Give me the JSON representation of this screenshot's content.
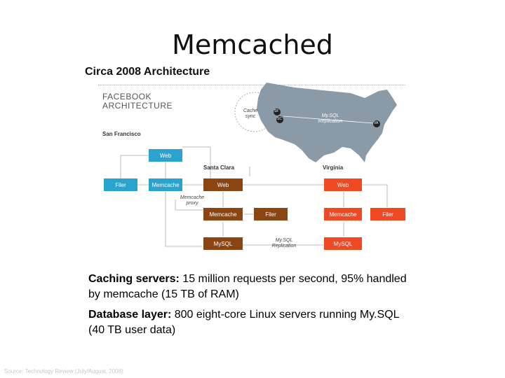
{
  "title": "Memcached",
  "subtitle": "Circa 2008 Architecture",
  "diagram": {
    "logo_line1": "FACEBOOK",
    "logo_line2": "ARCHITECTURE",
    "sites": {
      "sf": "San Francisco",
      "sc": "Santa Clara",
      "va": "Virginia"
    },
    "map": {
      "cache_sync": "Cache\nsync",
      "mysql_replication": "My.SQL\nReplication",
      "badge_sf": "SF",
      "badge_sc": "SC",
      "badge_va": "VA"
    },
    "boxes": {
      "sf_web": "Web",
      "sf_filer": "Filer",
      "sf_memcache": "Memcache",
      "sc_web": "Web",
      "sc_memcache": "Memcache",
      "sc_filer": "Filer",
      "sc_mysql": "MySQL",
      "va_web": "Web",
      "va_memcache": "Memcache",
      "va_filer": "Filer",
      "va_mysql": "MySQL"
    },
    "notes": {
      "memcache_proxy": "Memcache\nproxy",
      "mysql_replication": "My.SQL\nReplication"
    },
    "colors": {
      "sf": "#2aa3cf",
      "sc": "#8b4513",
      "va": "#ef4a24",
      "map": "#8a9aa6"
    }
  },
  "bullets": [
    {
      "label": "Caching servers:",
      "text": " 15 million requests per second, 95% handled by memcache (15 TB of RAM)"
    },
    {
      "label": "Database layer:",
      "text": " 800 eight-core Linux servers running My.SQL (40 TB user data)"
    }
  ],
  "source": "Source: Technology Review (July/August, 2008)"
}
